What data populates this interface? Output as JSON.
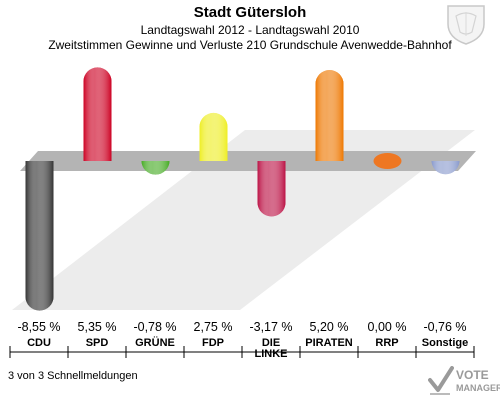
{
  "header": {
    "title": "Stadt Gütersloh",
    "subtitle": "Landtagswahl 2012 - Landtagswahl 2010",
    "description": "Zweitstimmen Gewinne und Verluste 210 Grundschule Avenwedde-Bahnhof"
  },
  "chart_data": {
    "type": "bar",
    "categories": [
      "CDU",
      "SPD",
      "GRÜNE",
      "FDP",
      "DIE LINKE",
      "PIRATEN",
      "RRP",
      "Sonstige"
    ],
    "category_labels": [
      [
        "CDU"
      ],
      [
        "SPD"
      ],
      [
        "GRÜNE"
      ],
      [
        "FDP"
      ],
      [
        "DIE",
        "LINKE"
      ],
      [
        "PIRATEN"
      ],
      [
        "RRP"
      ],
      [
        "Sonstige"
      ]
    ],
    "values": [
      -8.55,
      5.35,
      -0.78,
      2.75,
      -3.17,
      5.2,
      0.0,
      -0.76
    ],
    "value_labels": [
      "-8,55 %",
      "5,35 %",
      "-0,78 %",
      "2,75 %",
      "-3,17 %",
      "5,20 %",
      "0,00 %",
      "-0,76 %"
    ],
    "colors": [
      "#333333",
      "#cc0022",
      "#44aa22",
      "#eeee22",
      "#bb1144",
      "#ee7700",
      "#ee7722",
      "#8899cc"
    ],
    "ylim": [
      -9,
      6
    ]
  },
  "footer": {
    "text": "3 von 3 Schnellmeldungen"
  },
  "logo": {
    "line1": "VOTE",
    "line2": "MANAGER"
  },
  "coat_icon": "coat-of-arms-icon"
}
